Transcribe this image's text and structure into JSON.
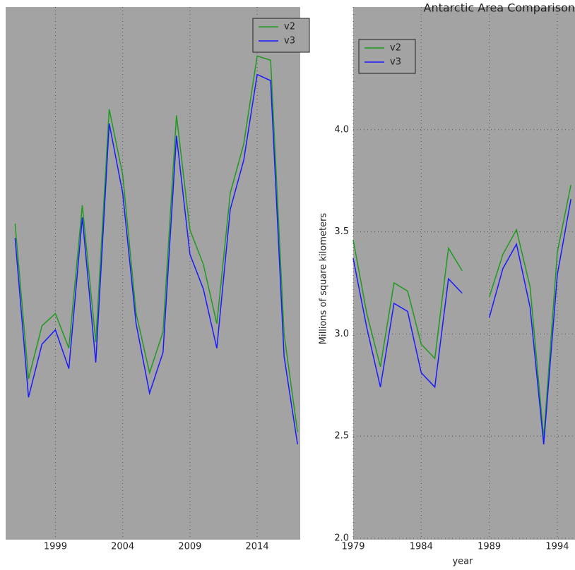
{
  "chart_data": [
    {
      "type": "line",
      "title": "Antarctic Area Comparison",
      "x": [
        1996,
        1997,
        1998,
        1999,
        2000,
        2001,
        2002,
        2003,
        2004,
        2005,
        2006,
        2007,
        2008,
        2009,
        2010,
        2011,
        2012,
        2013,
        2014,
        2015,
        2016,
        2017
      ],
      "series": [
        {
          "name": "v2",
          "color": "#1f9a1f",
          "values": [
            3.54,
            2.78,
            3.04,
            3.1,
            2.93,
            3.63,
            2.96,
            4.1,
            3.78,
            3.1,
            2.81,
            3.01,
            4.07,
            3.51,
            3.34,
            3.05,
            3.69,
            3.93,
            4.36,
            4.34,
            3.0,
            2.52
          ]
        },
        {
          "name": "v3",
          "color": "#1a1aff",
          "values": [
            3.47,
            2.69,
            2.95,
            3.02,
            2.83,
            3.57,
            2.86,
            4.03,
            3.69,
            3.05,
            2.71,
            2.91,
            3.97,
            3.39,
            3.22,
            2.93,
            3.61,
            3.85,
            4.27,
            4.24,
            2.89,
            2.46
          ]
        }
      ],
      "xlim": [
        1995.3,
        2017.2
      ],
      "xticks": [
        1999,
        2004,
        2009,
        2014
      ],
      "ylim": [
        2.0,
        4.6
      ],
      "grid": true
    },
    {
      "type": "line",
      "xlabel": "year",
      "ylabel": "Millions of square kilometers",
      "x": [
        1979,
        1980,
        1981,
        1982,
        1983,
        1984,
        1985,
        1986,
        1987,
        1988,
        1989,
        1990,
        1991,
        1992,
        1993,
        1994,
        1995
      ],
      "series": [
        {
          "name": "v2",
          "color": "#1f9a1f",
          "values": [
            3.46,
            3.1,
            2.84,
            3.25,
            3.21,
            2.95,
            2.88,
            3.42,
            3.31,
            null,
            3.18,
            3.39,
            3.51,
            3.23,
            2.49,
            3.4,
            3.73
          ]
        },
        {
          "name": "v3",
          "color": "#1a1aff",
          "values": [
            3.37,
            3.03,
            2.74,
            3.15,
            3.11,
            2.81,
            2.74,
            3.27,
            3.2,
            null,
            3.08,
            3.32,
            3.44,
            3.13,
            2.46,
            3.29,
            3.66
          ]
        }
      ],
      "xlim": [
        1979,
        1995.3
      ],
      "xticks": [
        1979,
        1984,
        1989,
        1994
      ],
      "ylim": [
        2.0,
        4.6
      ],
      "yticks": [
        {
          "value": 2.0,
          "label": "2.0"
        },
        {
          "value": 2.5,
          "label": "2.5"
        },
        {
          "value": 3.0,
          "label": "3.0"
        },
        {
          "value": 3.5,
          "label": "3.5"
        },
        {
          "value": 4.0,
          "label": "4.0"
        }
      ],
      "grid": true
    }
  ]
}
